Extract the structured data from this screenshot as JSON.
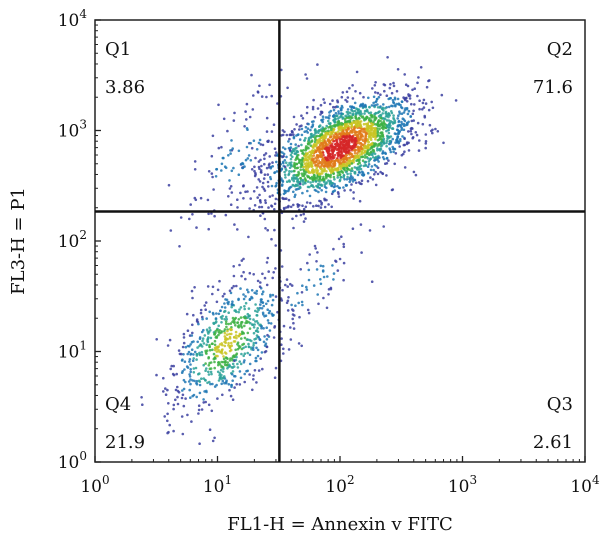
{
  "chart_data": {
    "type": "scatter",
    "title": "",
    "xlabel": "FL1-H = Annexin v FITC",
    "ylabel": "FL3-H = P1",
    "xscale": "log",
    "yscale": "log",
    "xlim": [
      1,
      10000
    ],
    "ylim": [
      1,
      10000
    ],
    "x_ticks": [
      {
        "base": "10",
        "exp": "0",
        "value": 1
      },
      {
        "base": "10",
        "exp": "1",
        "value": 10
      },
      {
        "base": "10",
        "exp": "2",
        "value": 100
      },
      {
        "base": "10",
        "exp": "3",
        "value": 1000
      },
      {
        "base": "10",
        "exp": "4",
        "value": 10000
      }
    ],
    "y_ticks": [
      {
        "base": "10",
        "exp": "0",
        "value": 1
      },
      {
        "base": "10",
        "exp": "1",
        "value": 10
      },
      {
        "base": "10",
        "exp": "2",
        "value": 100
      },
      {
        "base": "10",
        "exp": "3",
        "value": 1000
      },
      {
        "base": "10",
        "exp": "4",
        "value": 10000
      }
    ],
    "grid": false,
    "gates": {
      "x": 32,
      "y": 185
    },
    "quadrants": [
      {
        "name": "Q1",
        "value": "3.86",
        "position": "top-left"
      },
      {
        "name": "Q2",
        "value": "71.6",
        "position": "top-right"
      },
      {
        "name": "Q3",
        "value": "2.61",
        "position": "bottom-right"
      },
      {
        "name": "Q4",
        "value": "21.9",
        "position": "bottom-left"
      }
    ],
    "density_colors": [
      "#3b3fa0",
      "#1f77b4",
      "#2aa198",
      "#3cb043",
      "#c9c423",
      "#e07b1a",
      "#d62728"
    ],
    "populations": [
      {
        "label_ref": "Q2",
        "center": [
          100,
          700
        ],
        "spread_log": [
          0.28,
          0.22
        ],
        "relative_count": 0.72
      },
      {
        "label_ref": "Q4",
        "center": [
          12,
          12
        ],
        "spread_log": [
          0.22,
          0.3
        ],
        "relative_count": 0.22
      },
      {
        "label_ref": "Q1",
        "center": [
          15,
          600
        ],
        "spread_log": [
          0.2,
          0.3
        ],
        "relative_count": 0.035
      },
      {
        "label_ref": "Q3",
        "center": [
          60,
          40
        ],
        "spread_log": [
          0.2,
          0.25
        ],
        "relative_count": 0.025
      }
    ]
  }
}
